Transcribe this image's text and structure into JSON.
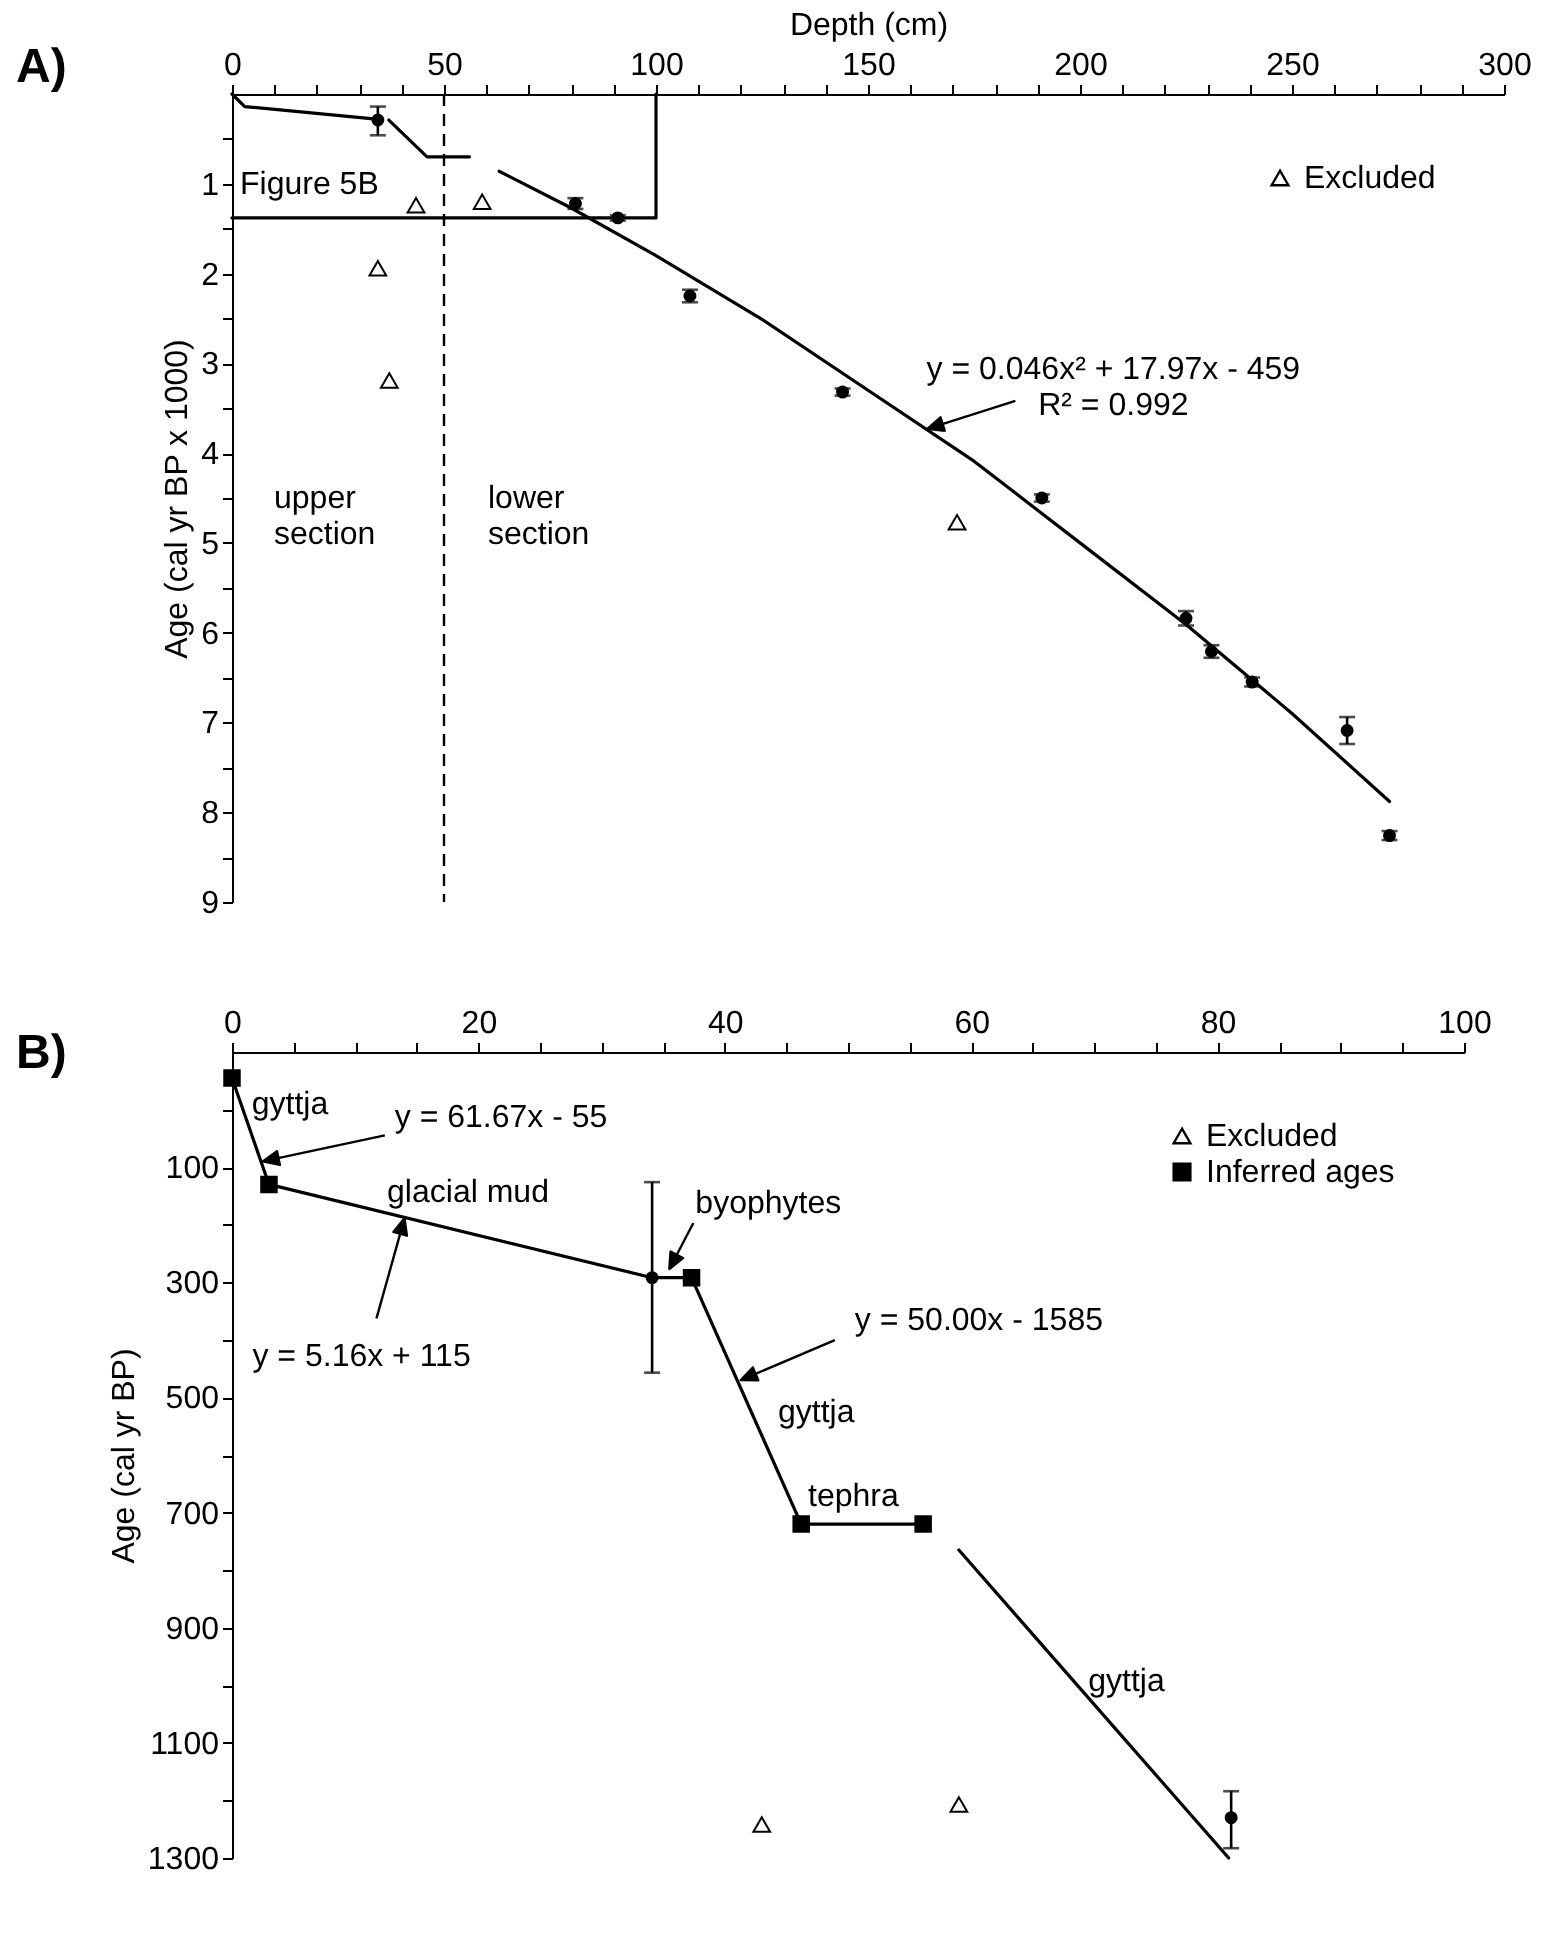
{
  "chart_data": [
    {
      "type": "scatter",
      "title": "A)",
      "xlabel": "Depth (cm)",
      "ylabel": "Age (cal yr BP x 1000)",
      "xlim": [
        0,
        300
      ],
      "xticks": [
        0,
        {
          "value": 10,
          "label": null
        },
        {
          "value": 20,
          "label": null
        },
        {
          "value": 30,
          "label": null
        },
        {
          "value": 40,
          "label": null
        },
        50,
        {
          "value": 60,
          "label": null
        },
        {
          "value": 70,
          "label": null
        },
        {
          "value": 80,
          "label": null
        },
        {
          "value": 90,
          "label": null
        },
        100,
        {
          "value": 110,
          "label": null
        },
        {
          "value": 120,
          "label": null
        },
        {
          "value": 130,
          "label": null
        },
        {
          "value": 140,
          "label": null
        },
        150,
        {
          "value": 160,
          "label": null
        },
        {
          "value": 170,
          "label": null
        },
        {
          "value": 180,
          "label": null
        },
        {
          "value": 190,
          "label": null
        },
        200,
        {
          "value": 210,
          "label": null
        },
        {
          "value": 220,
          "label": null
        },
        {
          "value": 230,
          "label": null
        },
        {
          "value": 240,
          "label": null
        },
        250,
        {
          "value": 260,
          "label": null
        },
        {
          "value": 270,
          "label": null
        },
        {
          "value": 280,
          "label": null
        },
        {
          "value": 290,
          "label": null
        },
        300
      ],
      "ylim": [
        9,
        0
      ],
      "yticks": [
        {
          "value": 0.5,
          "label": null
        },
        1,
        {
          "value": 1.5,
          "label": null
        },
        2,
        {
          "value": 2.5,
          "label": null
        },
        3,
        {
          "value": 3.5,
          "label": null
        },
        4,
        {
          "value": 4.5,
          "label": null
        },
        5,
        {
          "value": 5.5,
          "label": null
        },
        6,
        {
          "value": 6.5,
          "label": null
        },
        7,
        {
          "value": 7.5,
          "label": null
        },
        8,
        {
          "value": 8.5,
          "label": null
        },
        9
      ],
      "grid": false,
      "legend": "top right",
      "series": [
        {
          "marker": "circle",
          "color": "#000000",
          "x": [
            34.4,
            81,
            91,
            108,
            144,
            191,
            225,
            231,
            240.6,
            263,
            273
          ],
          "values": [
            0.29,
            1.22,
            1.38,
            2.25,
            3.32,
            4.5,
            5.84,
            6.21,
            6.55,
            7.09,
            8.26
          ],
          "errors": [
            [
              0.14,
              0.46
            ],
            0.06,
            0.03,
            0.07,
            0.04,
            0.04,
            0.08,
            0.07,
            0.05,
            0.15,
            0.05
          ]
        },
        {
          "name": "Excluded",
          "marker": "triangle",
          "color": "#000000",
          "x": [
            43.4,
            59,
            34.4,
            37.1,
            171
          ],
          "values": [
            1.24,
            1.2,
            1.94,
            3.19,
            4.77
          ]
        },
        {
          "type": "line",
          "color": "#000000",
          "x": [
            0,
            3,
            34,
            35.5,
            37,
            46,
            56
          ],
          "values": [
            0,
            0.14,
            0.28,
            null,
            0.29,
            0.7,
            0.7
          ]
        },
        {
          "type": "line",
          "color": "#000000",
          "x": [
            63,
            80,
            100,
            125,
            150,
            175,
            200,
            225,
            250,
            273
          ],
          "values": [
            0.86,
            1.27,
            1.8,
            2.51,
            3.3,
            4.09,
            5.0,
            5.91,
            6.9,
            7.88
          ]
        },
        {
          "type": "line",
          "color": "#000000",
          "x": [
            0,
            100,
            100
          ],
          "values": [
            1.38,
            1.38,
            0
          ]
        }
      ],
      "ref_lines": [
        {
          "axis": "x",
          "value": 50,
          "line_style": "dashed",
          "color": "#000000"
        }
      ],
      "annotations": [
        "Figure 5B",
        "upper\nsection",
        "lower\nsection",
        {
          "text": "y = 0.046x² + 17.97x - 459\nR² = 0.992",
          "x": 164,
          "y": 3.73
        }
      ]
    },
    {
      "type": "scatter",
      "title": "B)",
      "ylabel": "Age (cal yr BP)",
      "xlim": [
        0,
        100
      ],
      "xticks": [
        0,
        {
          "value": 5,
          "label": null
        },
        {
          "value": 10,
          "label": null
        },
        {
          "value": 15,
          "label": null
        },
        20,
        {
          "value": 25,
          "label": null
        },
        {
          "value": 30,
          "label": null
        },
        {
          "value": 35,
          "label": null
        },
        40,
        {
          "value": 45,
          "label": null
        },
        {
          "value": 50,
          "label": null
        },
        {
          "value": 55,
          "label": null
        },
        60,
        {
          "value": 65,
          "label": null
        },
        {
          "value": 70,
          "label": null
        },
        {
          "value": 75,
          "label": null
        },
        80,
        {
          "value": 85,
          "label": null
        },
        {
          "value": 90,
          "label": null
        },
        {
          "value": 95,
          "label": null
        },
        100
      ],
      "ylim": [
        1300,
        -100
      ],
      "yticks": [
        {
          "value": 0,
          "label": null
        },
        100,
        {
          "value": 200,
          "label": null
        },
        300,
        {
          "value": 400,
          "label": null
        },
        500,
        {
          "value": 600,
          "label": null
        },
        700,
        {
          "value": 800,
          "label": null
        },
        900,
        {
          "value": 1000,
          "label": null
        },
        1100,
        {
          "value": 1200,
          "label": null
        },
        1300
      ],
      "grid": false,
      "legend": "top right",
      "series": [
        {
          "type": "line",
          "color": "#000000",
          "x": [
            0,
            3,
            34.1,
            37.3,
            46.2,
            56.1,
            57.5,
            59,
            80.9
          ],
          "values": [
            -55,
            130,
            292,
            292,
            720,
            720,
            null,
            765,
            1300
          ]
        },
        {
          "marker": "circle",
          "color": "#000000",
          "x": [
            34.1,
            81.1
          ],
          "values": [
            292,
            1230
          ],
          "errors": [
            [
              126,
              457
            ],
            [
              1184,
              1283
            ]
          ]
        },
        {
          "name": "Excluded",
          "marker": "triangle",
          "color": "#000000",
          "x": [
            43,
            59
          ],
          "values": [
            1242,
            1207
          ]
        },
        {
          "name": "Inferred ages",
          "marker": "square",
          "color": "#000000",
          "x": [
            0,
            3,
            37.3,
            46.2,
            56.1
          ],
          "values": [
            -55,
            130,
            292,
            720,
            720
          ]
        }
      ],
      "annotations": [
        {
          "text": "gyttja",
          "x": 1.6,
          "y": -10
        },
        {
          "text": "y = 61.67x - 55",
          "x": 2.5,
          "y": 90
        },
        "glacial mud",
        {
          "text": "y = 5.16x + 115",
          "x": 14,
          "y": 189
        },
        {
          "text": "byophytes",
          "x": 35.5,
          "y": 277
        },
        {
          "text": "y = 50.00x - 1585",
          "x": 41.3,
          "y": 470
        },
        "gyttja",
        "tephra",
        {
          "text": "gyttja",
          "x": 69.5,
          "y": 992
        }
      ]
    }
  ]
}
